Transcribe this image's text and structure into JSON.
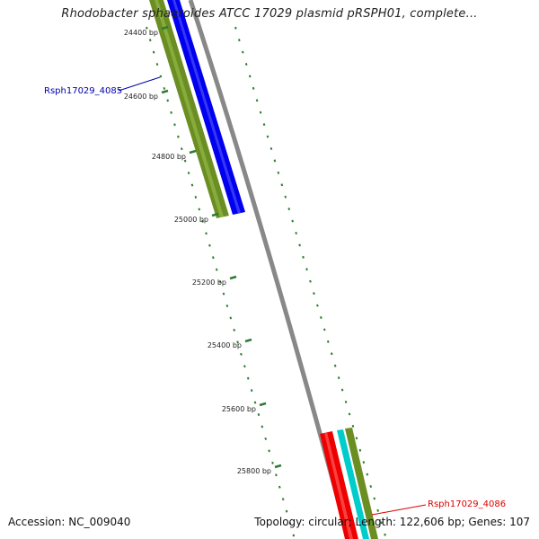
{
  "title": "Rhodobacter sphaeroides ATCC 17029 plasmid pRSPH01, complete...",
  "ticks": [
    {
      "label": "24400 bp"
    },
    {
      "label": "24600 bp"
    },
    {
      "label": "24800 bp"
    },
    {
      "label": "25000 bp"
    },
    {
      "label": "25200 bp"
    },
    {
      "label": "25400 bp"
    },
    {
      "label": "25600 bp"
    },
    {
      "label": "25800 bp"
    }
  ],
  "genes": [
    {
      "label": "Rsph17029_4085",
      "color": "#0000aa"
    },
    {
      "label": "Rsph17029_4086",
      "color": "#dd0000"
    }
  ],
  "track_colors": {
    "backbone": "#888888",
    "olive": "#6b8e23",
    "blue": "#0000ee",
    "red": "#ee0000",
    "cyan": "#00cccc",
    "tick": "#2e7d32"
  },
  "footer": {
    "accession": "Accession: NC_009040",
    "summary": "Topology: circular; Length: 122,606 bp; Genes: 107"
  }
}
